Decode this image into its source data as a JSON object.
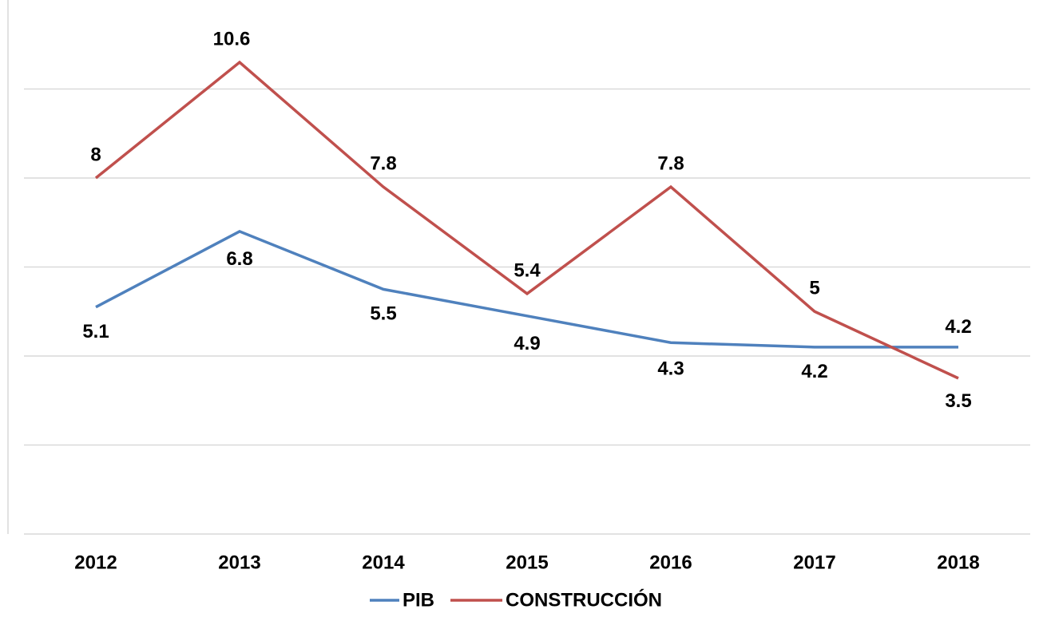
{
  "chart_data": {
    "type": "line",
    "categories": [
      "2012",
      "2013",
      "2014",
      "2015",
      "2016",
      "2017",
      "2018"
    ],
    "series": [
      {
        "name": "PIB",
        "color": "#4f81bd",
        "values": [
          5.1,
          6.8,
          5.5,
          4.9,
          4.3,
          4.2,
          4.2
        ]
      },
      {
        "name": "CONSTRUCCIÓN",
        "color": "#c0504d",
        "values": [
          8,
          10.6,
          7.8,
          5.4,
          7.8,
          5,
          3.5
        ]
      }
    ],
    "ylim": [
      0,
      12
    ],
    "yticks": [
      0,
      2,
      4,
      6,
      8,
      10
    ],
    "grid": true,
    "legend": "bottom"
  }
}
